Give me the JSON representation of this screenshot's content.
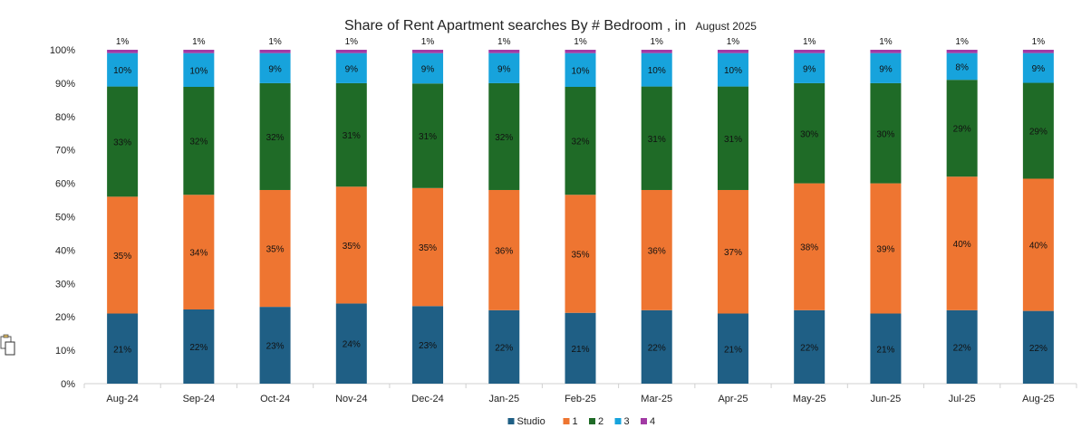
{
  "chart_data": {
    "type": "bar",
    "stacked": true,
    "title": "Share of Rent Apartment searches  By # Bedroom , in",
    "subtitle": "August 2025",
    "xlabel": "",
    "ylabel": "",
    "ylim": [
      0,
      100
    ],
    "yticks": [
      "0%",
      "10%",
      "20%",
      "30%",
      "40%",
      "50%",
      "60%",
      "70%",
      "80%",
      "90%",
      "100%"
    ],
    "grid": false,
    "legend_position": "bottom",
    "categories": [
      "Aug-24",
      "Sep-24",
      "Oct-24",
      "Nov-24",
      "Dec-24",
      "Jan-25",
      "Feb-25",
      "Mar-25",
      "Apr-25",
      "May-25",
      "Jun-25",
      "Jul-25",
      "Aug-25"
    ],
    "series": [
      {
        "name": "Studio",
        "color": "#1f5f85",
        "values": [
          21,
          22,
          23,
          24,
          23,
          22,
          21,
          22,
          21,
          22,
          21,
          22,
          22
        ],
        "labels": [
          "21%",
          "22%",
          "23%",
          "24%",
          "23%",
          "22%",
          "21%",
          "22%",
          "21%",
          "22%",
          "21%",
          "22%",
          "22%"
        ]
      },
      {
        "name": "1",
        "color": "#ee7531",
        "values": [
          35,
          34,
          35,
          35,
          35,
          36,
          35,
          36,
          37,
          38,
          39,
          40,
          40
        ],
        "labels": [
          "35%",
          "34%",
          "35%",
          "35%",
          "35%",
          "36%",
          "35%",
          "36%",
          "37%",
          "38%",
          "39%",
          "40%",
          "40%"
        ]
      },
      {
        "name": "2",
        "color": "#1f6b27",
        "values": [
          33,
          32,
          32,
          31,
          31,
          32,
          32,
          31,
          31,
          30,
          30,
          29,
          29
        ],
        "labels": [
          "33%",
          "32%",
          "32%",
          "31%",
          "31%",
          "32%",
          "32%",
          "31%",
          "31%",
          "30%",
          "30%",
          "29%",
          "29%"
        ]
      },
      {
        "name": "3",
        "color": "#17a3dc",
        "values": [
          10,
          10,
          9,
          9,
          9,
          9,
          10,
          10,
          10,
          9,
          9,
          8,
          9
        ],
        "labels": [
          "10%",
          "10%",
          "9%",
          "9%",
          "9%",
          "9%",
          "10%",
          "10%",
          "10%",
          "9%",
          "9%",
          "8%",
          "9%"
        ]
      },
      {
        "name": "4",
        "color": "#a23aa4",
        "values": [
          1,
          1,
          1,
          1,
          1,
          1,
          1,
          1,
          1,
          1,
          1,
          1,
          1
        ],
        "labels": [
          "1%",
          "1%",
          "1%",
          "1%",
          "1%",
          "1%",
          "1%",
          "1%",
          "1%",
          "1%",
          "1%",
          "1%",
          "1%"
        ]
      }
    ]
  },
  "ui": {
    "paste_icon": "paste-options-icon"
  }
}
